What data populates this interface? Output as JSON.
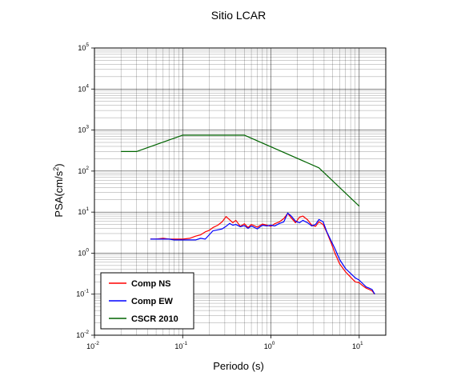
{
  "chart_data": {
    "type": "line",
    "title": "Sitio LCAR",
    "xlabel": "Periodo (s)",
    "ylabel": "PSA(cm/s",
    "ylabel_sup": "2",
    "ylabel_end": ")",
    "xscale": "log",
    "yscale": "log",
    "xlim": [
      0.01,
      20
    ],
    "ylim": [
      0.01,
      100000
    ],
    "grid": true,
    "legend_position": "bottom-left",
    "x_ticks": [
      {
        "base": "10",
        "exp": "-2",
        "value": 0.01
      },
      {
        "base": "10",
        "exp": "-1",
        "value": 0.1
      },
      {
        "base": "10",
        "exp": "0",
        "value": 1
      },
      {
        "base": "10",
        "exp": "1",
        "value": 10
      }
    ],
    "y_ticks": [
      {
        "base": "10",
        "exp": "-2",
        "value": 0.01
      },
      {
        "base": "10",
        "exp": "-1",
        "value": 0.1
      },
      {
        "base": "10",
        "exp": "0",
        "value": 1
      },
      {
        "base": "10",
        "exp": "1",
        "value": 10
      },
      {
        "base": "10",
        "exp": "2",
        "value": 100
      },
      {
        "base": "10",
        "exp": "3",
        "value": 1000
      },
      {
        "base": "10",
        "exp": "4",
        "value": 10000
      },
      {
        "base": "10",
        "exp": "5",
        "value": 100000
      }
    ],
    "series": [
      {
        "name": "Comp NS",
        "color": "#ff0000",
        "x": [
          0.043,
          0.05,
          0.06,
          0.07,
          0.08,
          0.1,
          0.12,
          0.14,
          0.16,
          0.18,
          0.2,
          0.22,
          0.25,
          0.28,
          0.31,
          0.34,
          0.37,
          0.4,
          0.45,
          0.5,
          0.55,
          0.6,
          0.7,
          0.8,
          0.9,
          1.0,
          1.1,
          1.25,
          1.4,
          1.55,
          1.7,
          1.9,
          2.1,
          2.3,
          2.6,
          2.9,
          3.2,
          3.5,
          3.9,
          4.3,
          4.8,
          5.3,
          6.0,
          7.0,
          8.0,
          9.0,
          10.0,
          11.0,
          12.0,
          13.0,
          14.0,
          15.0
        ],
        "y": [
          2.2,
          2.2,
          2.3,
          2.2,
          2.2,
          2.2,
          2.3,
          2.6,
          2.8,
          3.3,
          3.6,
          4.2,
          4.8,
          5.8,
          7.8,
          6.5,
          5.5,
          6.3,
          4.5,
          5.2,
          4.2,
          5.0,
          4.3,
          5.1,
          4.8,
          4.5,
          5.2,
          5.8,
          7.0,
          9.3,
          7.2,
          5.5,
          7.5,
          8.0,
          6.5,
          4.8,
          4.5,
          5.8,
          5.0,
          3.2,
          1.8,
          1.0,
          0.55,
          0.35,
          0.26,
          0.2,
          0.19,
          0.16,
          0.14,
          0.13,
          0.12,
          0.1
        ]
      },
      {
        "name": "Comp EW",
        "color": "#0000ff",
        "x": [
          0.043,
          0.05,
          0.06,
          0.07,
          0.08,
          0.1,
          0.12,
          0.14,
          0.16,
          0.18,
          0.2,
          0.22,
          0.25,
          0.28,
          0.31,
          0.34,
          0.37,
          0.4,
          0.45,
          0.5,
          0.55,
          0.6,
          0.7,
          0.8,
          0.9,
          1.0,
          1.1,
          1.25,
          1.4,
          1.55,
          1.7,
          1.9,
          2.1,
          2.3,
          2.6,
          2.9,
          3.2,
          3.5,
          3.9,
          4.3,
          4.8,
          5.3,
          6.0,
          7.0,
          8.0,
          9.0,
          10.0,
          11.0,
          12.0,
          13.0,
          14.0,
          15.0
        ],
        "y": [
          2.2,
          2.2,
          2.2,
          2.2,
          2.1,
          2.1,
          2.1,
          2.1,
          2.3,
          2.2,
          2.8,
          3.5,
          3.7,
          3.9,
          4.5,
          5.3,
          4.8,
          5.0,
          4.4,
          4.7,
          4.0,
          4.6,
          3.9,
          4.8,
          4.6,
          4.8,
          4.6,
          5.3,
          5.8,
          9.5,
          8.0,
          6.0,
          5.5,
          6.3,
          5.5,
          4.6,
          5.0,
          6.6,
          5.8,
          3.3,
          2.0,
          1.3,
          0.7,
          0.42,
          0.32,
          0.25,
          0.22,
          0.18,
          0.15,
          0.14,
          0.13,
          0.1
        ]
      },
      {
        "name": "CSCR 2010",
        "color": "#006400",
        "x": [
          0.02,
          0.03,
          0.1,
          0.5,
          3.5,
          10
        ],
        "y": [
          300,
          300,
          750,
          750,
          120,
          14
        ]
      }
    ]
  }
}
